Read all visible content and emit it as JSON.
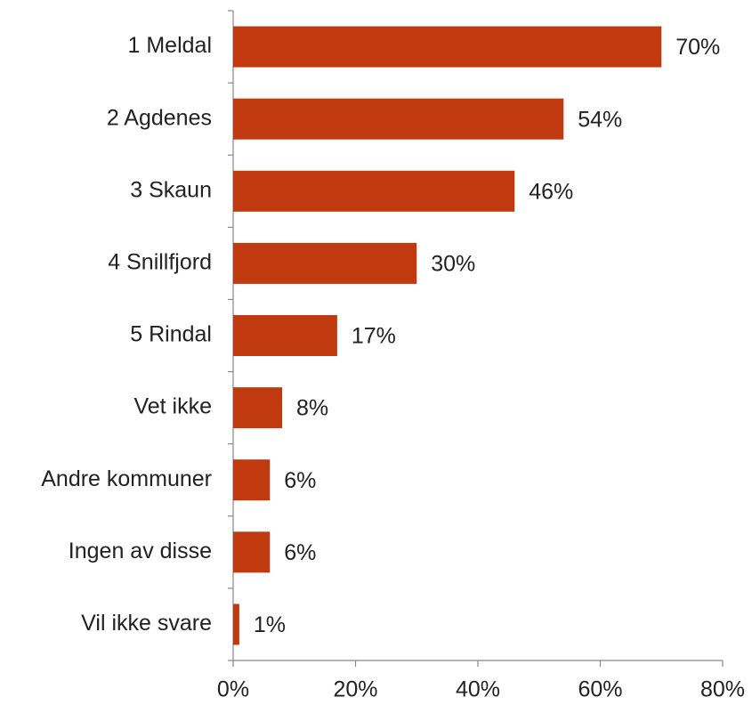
{
  "chart_data": {
    "type": "bar",
    "orientation": "horizontal",
    "categories": [
      "1 Meldal",
      "2 Agdenes",
      "3 Skaun",
      "4 Snillfjord",
      "5 Rindal",
      "Vet ikke",
      "Andre kommuner",
      "Ingen av disse",
      "Vil ikke svare"
    ],
    "values": [
      70,
      54,
      46,
      30,
      17,
      8,
      6,
      6,
      1
    ],
    "value_labels": [
      "70%",
      "54%",
      "46%",
      "30%",
      "17%",
      "8%",
      "6%",
      "6%",
      "1%"
    ],
    "color": "#c0390f",
    "xlim": [
      0,
      80
    ],
    "xticks": [
      {
        "value": 0,
        "label": "0%"
      },
      {
        "value": 20,
        "label": "20%"
      },
      {
        "value": 40,
        "label": "40%"
      },
      {
        "value": 60,
        "label": "60%"
      },
      {
        "value": 80,
        "label": "80%"
      }
    ]
  }
}
